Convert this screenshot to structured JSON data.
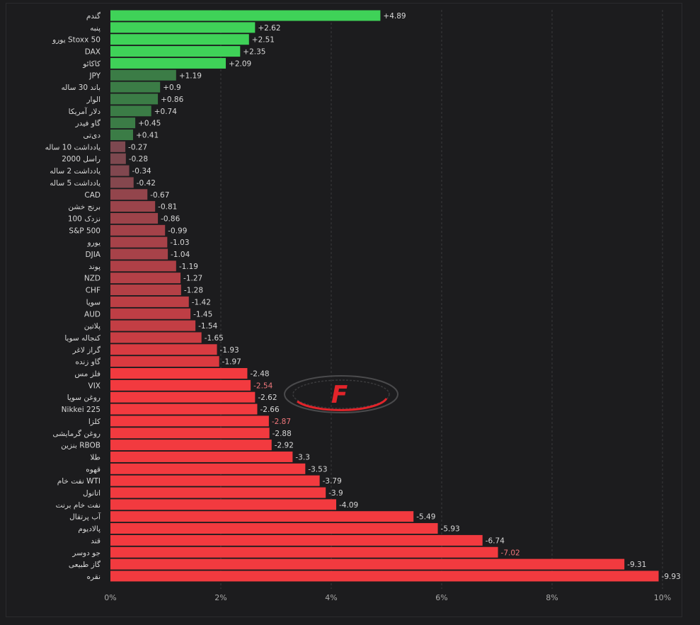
{
  "colors": {
    "background": "#1c1c1e",
    "positive_strong": "#3fd258",
    "positive_dark": "#3b7c46",
    "negative": "#f23a3f",
    "negative_muted": "#8e4a52",
    "label_text": "#d8d8d8",
    "highlight_label": "#f0787c",
    "grid": "#3a3a3c"
  },
  "logo": {
    "letter": "F"
  },
  "chart_data": {
    "type": "bar",
    "orientation": "horizontal",
    "value_basis": "absolute percent change",
    "xlim": [
      0,
      10
    ],
    "x_ticks": [
      "0%",
      "2%",
      "4%",
      "6%",
      "8%",
      "10%"
    ],
    "grid": true,
    "categories": [
      "گندم",
      "پنبه",
      "یورو Stoxx 50",
      "DAX",
      "کاکائو",
      "JPY",
      "باند 30 ساله",
      "الوار",
      "دلار آمریکا",
      "گاو فیدر",
      "دی‌تی",
      "یادداشت 10 ساله",
      "راسل 2000",
      "یادداشت 2 ساله",
      "یادداشت 5 ساله",
      "CAD",
      "برنج خشن",
      "نزدک 100",
      "S&P 500",
      "یورو",
      "DJIA",
      "پوند",
      "NZD",
      "CHF",
      "سویا",
      "AUD",
      "پلاتین",
      "کنجاله سویا",
      "گراز لاغر",
      "گاو زنده",
      "فلز مس",
      "VIX",
      "روغن سویا",
      "Nikkei 225",
      "کلزا",
      "روغن گرمایشی",
      "بنزین RBOB",
      "طلا",
      "قهوه",
      "نفت خام WTI",
      "اتانول",
      "نفت خام برنت",
      "آب پرتقال",
      "پالادیوم",
      "قند",
      "جو دوسر",
      "گاز طبیعی",
      "نقره"
    ],
    "value_labels": [
      "+4.89",
      "+2.62",
      "+2.51",
      "+2.35",
      "+2.09",
      "+1.19",
      "+0.9",
      "+0.86",
      "+0.74",
      "+0.45",
      "+0.41",
      "-0.27",
      "-0.28",
      "-0.34",
      "-0.42",
      "-0.67",
      "-0.81",
      "-0.86",
      "-0.99",
      "-1.03",
      "-1.04",
      "-1.19",
      "-1.27",
      "-1.28",
      "-1.42",
      "-1.45",
      "-1.54",
      "-1.65",
      "-1.93",
      "-1.97",
      "-2.48",
      "-2.54",
      "-2.62",
      "-2.66",
      "-2.87",
      "-2.88",
      "-2.92",
      "-3.3",
      "-3.53",
      "-3.79",
      "-3.9",
      "-4.09",
      "-5.49",
      "-5.93",
      "-6.74",
      "-7.02",
      "-9.31",
      "-9.93"
    ],
    "values": [
      4.89,
      2.62,
      2.51,
      2.35,
      2.09,
      1.19,
      0.9,
      0.86,
      0.74,
      0.45,
      0.41,
      -0.27,
      -0.28,
      -0.34,
      -0.42,
      -0.67,
      -0.81,
      -0.86,
      -0.99,
      -1.03,
      -1.04,
      -1.19,
      -1.27,
      -1.28,
      -1.42,
      -1.45,
      -1.54,
      -1.65,
      -1.93,
      -1.97,
      -2.48,
      -2.54,
      -2.62,
      -2.66,
      -2.87,
      -2.88,
      -2.92,
      -3.3,
      -3.53,
      -3.79,
      -3.9,
      -4.09,
      -5.49,
      -5.93,
      -6.74,
      -7.02,
      -9.31,
      -9.93
    ],
    "highlighted_labels": [
      "-2.54",
      "-2.87",
      "-7.02"
    ]
  }
}
